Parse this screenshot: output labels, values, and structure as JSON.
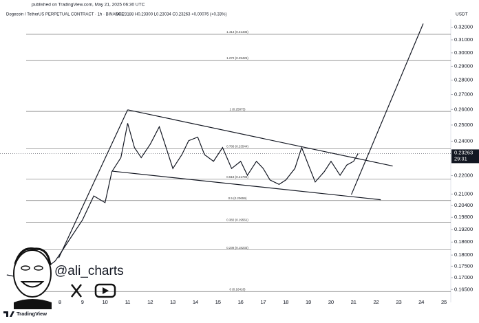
{
  "header": {
    "published": "published on TradingView.com, May 21, 2025 06:30 UTC",
    "symbol": "Dogecoin / TetherUS PERPETUAL CONTRACT · 1h · BINANCE",
    "ohlc": "O0.23188  H0.23300  L0.23034  C0.23263  +0.00076 (+0.33%)",
    "currency": "USDT"
  },
  "chart_data": {
    "type": "line",
    "log_scale": true,
    "color": "#131722",
    "x": [
      5.65,
      6.57,
      7.18,
      7.79,
      8,
      8.5,
      9,
      9.5,
      10,
      10.3,
      10.7,
      11,
      11.3,
      11.6,
      12,
      12.4,
      12.7,
      13,
      13.4,
      13.7,
      14.1,
      14.4,
      14.8,
      15.2,
      15.6,
      16,
      16.3,
      16.7,
      17,
      17.3,
      17.7,
      18,
      18.4,
      18.7,
      19,
      19.3,
      19.7,
      20,
      20.4,
      20.7,
      21,
      21.2
    ],
    "values": [
      0.1712,
      0.1695,
      0.1727,
      0.1773,
      0.1804,
      0.1884,
      0.1967,
      0.209,
      0.2055,
      0.2222,
      0.2302,
      0.2511,
      0.2362,
      0.2302,
      0.2382,
      0.2489,
      0.2362,
      0.224,
      0.232,
      0.2403,
      0.2425,
      0.232,
      0.2281,
      0.2362,
      0.224,
      0.2281,
      0.2202,
      0.2281,
      0.224,
      0.2176,
      0.2152,
      0.2176,
      0.224,
      0.2362,
      0.226,
      0.2165,
      0.2222,
      0.2281,
      0.2202,
      0.226,
      0.2281,
      0.23263
    ],
    "xlim": [
      5.35,
      25.3
    ],
    "xticks": [
      8,
      9,
      10,
      11,
      12,
      13,
      14,
      15,
      16,
      17,
      18,
      19,
      20,
      21,
      22,
      23,
      24,
      25
    ],
    "ylim": [
      0.16,
      0.33
    ],
    "yticks": [
      {
        "value": 0.32,
        "label": "0.32000"
      },
      {
        "value": 0.31,
        "label": "0.31000"
      },
      {
        "value": 0.3,
        "label": "0.30000"
      },
      {
        "value": 0.29,
        "label": "0.29000"
      },
      {
        "value": 0.28,
        "label": "0.28000"
      },
      {
        "value": 0.27,
        "label": "0.27000"
      },
      {
        "value": 0.26,
        "label": "0.26000"
      },
      {
        "value": 0.25,
        "label": "0.25000"
      },
      {
        "value": 0.24,
        "label": "0.24000"
      },
      {
        "value": 0.22,
        "label": "0.22000"
      },
      {
        "value": 0.21,
        "label": "0.21000"
      },
      {
        "value": 0.204,
        "label": "0.20400"
      },
      {
        "value": 0.198,
        "label": "0.19800"
      },
      {
        "value": 0.192,
        "label": "0.19200"
      },
      {
        "value": 0.186,
        "label": "0.18600"
      },
      {
        "value": 0.18,
        "label": "0.18000"
      },
      {
        "value": 0.175,
        "label": "0.17500"
      },
      {
        "value": 0.17,
        "label": "0.17000"
      },
      {
        "value": 0.165,
        "label": "0.16500"
      }
    ],
    "countdown": "29:31",
    "fib_levels": [
      {
        "value": 0.31436,
        "label": "1.414 (0.31436)"
      },
      {
        "value": 0.29425,
        "label": "1.272 (0.29425)"
      },
      {
        "value": 0.25875,
        "label": "1 (0.25875)"
      },
      {
        "value": 0.23544,
        "label": "0.786 (0.23544)"
      },
      {
        "value": 0.21798,
        "label": "0.618 (0.21798)"
      },
      {
        "value": 0.20659,
        "label": "0.5 (0.20659)"
      },
      {
        "value": 0.19561,
        "label": "0.382 (0.19561)"
      },
      {
        "value": 0.18233,
        "label": "0.236 (0.18233)"
      },
      {
        "value": 0.16418,
        "label": "0 (0.16418)"
      }
    ],
    "trend_lines": [
      {
        "x": [
          7.95,
          11.0
        ],
        "values": [
          0.1787,
          0.2598
        ]
      },
      {
        "x": [
          11.0,
          22.73
        ],
        "values": [
          0.2598,
          0.2254
        ]
      },
      {
        "x": [
          10.32,
          22.2
        ],
        "values": [
          0.2225,
          0.207
        ]
      },
      {
        "x": [
          20.9,
          24.08
        ],
        "values": [
          0.2097,
          0.323
        ]
      }
    ]
  },
  "watermark": {
    "handle": "@ali_charts",
    "brand": "TradingView"
  }
}
